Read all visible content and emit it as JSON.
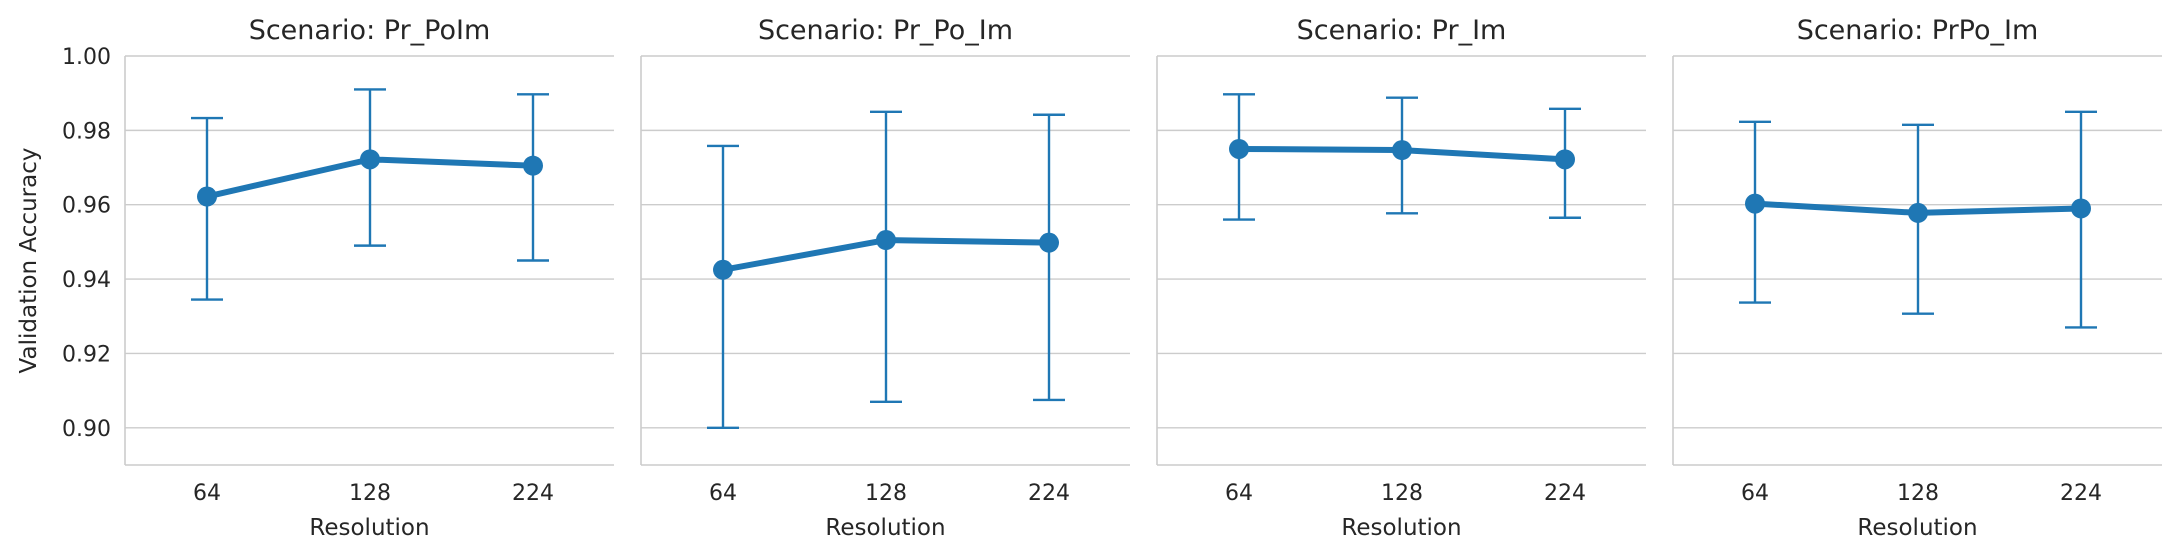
{
  "chart_data": {
    "type": "line",
    "ylabel": "Validation Accuracy",
    "xlabel": "Resolution",
    "ylim": [
      0.89,
      1.0
    ],
    "yticks": [
      0.9,
      0.92,
      0.94,
      0.96,
      0.98,
      1.0
    ],
    "ytick_labels": [
      "0.90",
      "0.92",
      "0.94",
      "0.96",
      "0.98",
      "1.00"
    ],
    "categories": [
      "64",
      "128",
      "224"
    ],
    "grid": "horizontal",
    "color": "#1f77b4",
    "panels": [
      {
        "title": "Scenario: Pr_PoIm",
        "values": [
          0.9622,
          0.9722,
          0.9705
        ],
        "err_low": [
          0.9345,
          0.949,
          0.945
        ],
        "err_high": [
          0.9833,
          0.991,
          0.9897
        ]
      },
      {
        "title": "Scenario: Pr_Po_Im",
        "values": [
          0.9425,
          0.9505,
          0.9498
        ],
        "err_low": [
          0.9,
          0.907,
          0.9075
        ],
        "err_high": [
          0.9758,
          0.985,
          0.9842
        ]
      },
      {
        "title": "Scenario: Pr_Im",
        "values": [
          0.975,
          0.9747,
          0.9722
        ],
        "err_low": [
          0.956,
          0.9577,
          0.9565
        ],
        "err_high": [
          0.9897,
          0.9888,
          0.9858
        ]
      },
      {
        "title": "Scenario: PrPo_Im",
        "values": [
          0.9603,
          0.9578,
          0.959
        ],
        "err_low": [
          0.9337,
          0.9307,
          0.927
        ],
        "err_high": [
          0.9823,
          0.9815,
          0.985
        ]
      }
    ]
  }
}
